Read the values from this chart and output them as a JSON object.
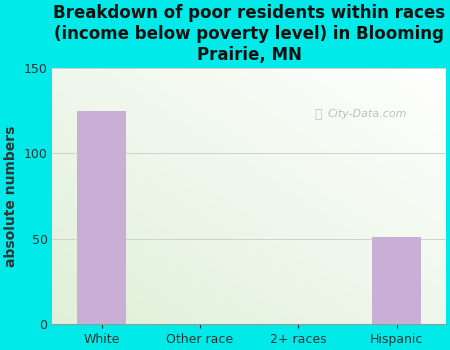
{
  "title": "Breakdown of poor residents within races\n(income below poverty level) in Blooming\nPrairie, MN",
  "categories": [
    "White",
    "Other race",
    "2+ races",
    "Hispanic"
  ],
  "values": [
    125,
    0,
    0,
    51
  ],
  "bar_color": "#c9aed6",
  "ylabel": "absolute numbers",
  "ylim": [
    0,
    150
  ],
  "yticks": [
    0,
    50,
    100,
    150
  ],
  "bg_outer": "#00eaea",
  "bg_plot_topleft": "#dff0d8",
  "bg_plot_bottomright": "#ffffff",
  "grid_color": "#d0d0d0",
  "watermark": "City-Data.com",
  "title_fontsize": 12,
  "ylabel_fontsize": 10,
  "tick_fontsize": 9
}
